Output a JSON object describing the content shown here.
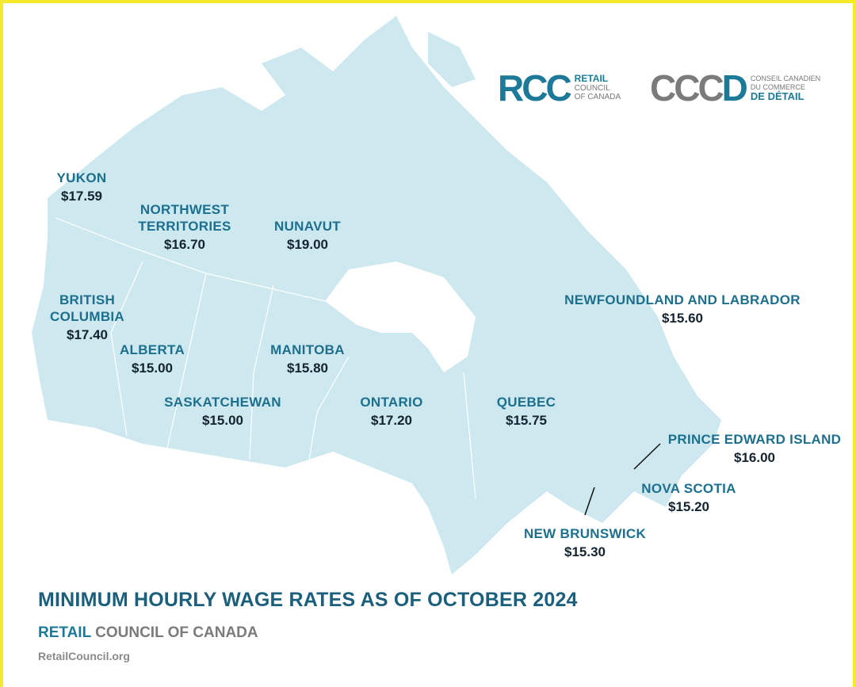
{
  "logo_en": {
    "mark": "RCC",
    "line1": "RETAIL",
    "line2": "COUNCIL",
    "line3": "OF CANADA"
  },
  "logo_fr": {
    "mark_grey": "CCC",
    "mark_teal": "D",
    "line1": "CONSEIL CANADIEN",
    "line2": "DU COMMERCE",
    "line3": "DE DÉTAIL"
  },
  "colors": {
    "land": "#cde8ef",
    "label": "#1d6f8e",
    "value": "#13232f",
    "border": "#f5ea2a"
  },
  "regions": [
    {
      "name": "YUKON",
      "wage": "$17.59"
    },
    {
      "name": "NORTHWEST TERRITORIES",
      "wage": "$16.70"
    },
    {
      "name": "NUNAVUT",
      "wage": "$19.00"
    },
    {
      "name": "BRITISH COLUMBIA",
      "wage": "$17.40"
    },
    {
      "name": "ALBERTA",
      "wage": "$15.00"
    },
    {
      "name": "MANITOBA",
      "wage": "$15.80"
    },
    {
      "name": "SASKATCHEWAN",
      "wage": "$15.00"
    },
    {
      "name": "ONTARIO",
      "wage": "$17.20"
    },
    {
      "name": "QUEBEC",
      "wage": "$15.75"
    },
    {
      "name": "NEWFOUNDLAND AND LABRADOR",
      "wage": "$15.60"
    },
    {
      "name": "PRINCE EDWARD ISLAND",
      "wage": "$16.00"
    },
    {
      "name": "NOVA SCOTIA",
      "wage": "$15.20"
    },
    {
      "name": "NEW BRUNSWICK",
      "wage": "$15.30"
    }
  ],
  "footer": {
    "title": "MINIMUM HOURLY WAGE RATES AS OF OCTOBER 2024",
    "org_teal": "RETAIL",
    "org_grey": "COUNCIL OF CANADA",
    "url": "RetailCouncil.org"
  }
}
